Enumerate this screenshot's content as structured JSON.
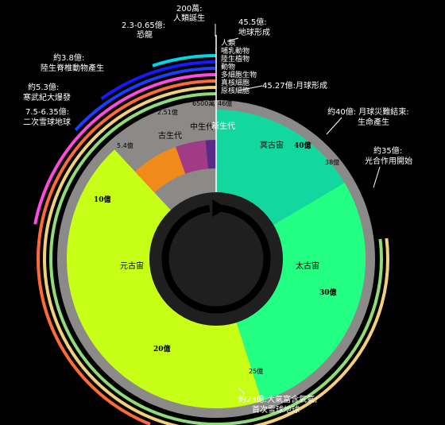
{
  "eons": [
    {
      "id": "hadean",
      "label": "冥古宙",
      "start": 45.5,
      "end": 38,
      "color": "#12d8a0"
    },
    {
      "id": "archean",
      "label": "太古宙",
      "start": 38,
      "end": 25,
      "color": "#22ff82"
    },
    {
      "id": "proterozoic",
      "label": "元古宙",
      "start": 25,
      "end": 5.42,
      "color": "#c7ff16"
    }
  ],
  "eras": [
    {
      "id": "paleozoic",
      "label": "古生代",
      "start": 5.42,
      "end": 2.51,
      "color": "#f08a1a"
    },
    {
      "id": "mesozoic",
      "label": "中生代",
      "start": 2.51,
      "end": 0.65,
      "color": "#a23b86"
    },
    {
      "id": "cenozoic",
      "label": "新生代",
      "start": 0.65,
      "end": 0,
      "color": "#5a2b86"
    }
  ],
  "inner_ticks": [
    "40億",
    "30億",
    "20億",
    "10億"
  ],
  "rim_labels": [
    "38億",
    "25億",
    "5.4億",
    "2.51億",
    "6500萬",
    "46億"
  ],
  "life_arcs": [
    {
      "id": "humans",
      "label": "人類",
      "start": 0.02,
      "color": "#ffffff"
    },
    {
      "id": "mammals",
      "label": "哺乳動物",
      "start": 2.3,
      "color": "#00d8e6"
    },
    {
      "id": "land-plants",
      "label": "陸生植物",
      "start": 4.5,
      "color": "#1818ff"
    },
    {
      "id": "animals",
      "label": "動物",
      "start": 6.0,
      "color": "#1e3cff"
    },
    {
      "id": "multicellular",
      "label": "多細胞生物",
      "start": 10.0,
      "color": "#ff4ae0"
    },
    {
      "id": "eukaryotes",
      "label": "真核細胞",
      "start": 20.0,
      "color": "#ff6a3a"
    },
    {
      "id": "prokaryotes",
      "label": "原核細胞",
      "start": 35.0,
      "color": "#f2cf7a"
    }
  ],
  "annotations": {
    "humans_origin": {
      "time": "200萬:",
      "text": "人類誕生"
    },
    "earth_formed": {
      "time": "45.5億:",
      "text": "地球形成"
    },
    "dinosaurs": {
      "time": "2.3-0.65億:",
      "text": "恐龍"
    },
    "vertebrates": {
      "time": "約3.8億:",
      "text": "陸生脊椎動物產生"
    },
    "cambrian": {
      "time": "約5.3億:",
      "text": "寒武紀大爆發"
    },
    "snowball2": {
      "time": "7.5-6.35億:",
      "text": "二次雪球地球"
    },
    "moon_formed": "45.27億:月球形成",
    "bombardment": {
      "time": "約40億: 月球災難結束:",
      "text": "生命產生"
    },
    "photosynthesis": {
      "time": "約35億:",
      "text": "光合作用開始"
    },
    "oxygen": {
      "time": "約23億:大氣富含氧氣;",
      "text": "首次雪球地球"
    }
  },
  "colors": {
    "background": "#000000",
    "rim": "#8c8a88",
    "outer_arc": "#8fdc78",
    "hole": "#1f1f1f"
  }
}
